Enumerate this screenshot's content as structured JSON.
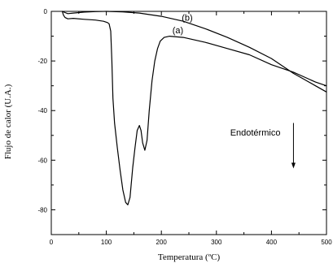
{
  "chart_data": {
    "type": "line",
    "title": "",
    "xlabel": "Temperatura (ºC)",
    "ylabel": "Flujo de calor (U.A.)",
    "xlim": [
      0,
      500
    ],
    "ylim": [
      -90,
      0
    ],
    "xticks": [
      0,
      100,
      200,
      300,
      400,
      500
    ],
    "yticks": [
      0,
      -20,
      -40,
      -60,
      -80
    ],
    "grid": false,
    "legend": "none",
    "series": [
      {
        "name": "(a)",
        "points": [
          [
            20,
            0
          ],
          [
            22,
            -1.5
          ],
          [
            25,
            -2.5
          ],
          [
            30,
            -3
          ],
          [
            40,
            -2.8
          ],
          [
            60,
            -3.2
          ],
          [
            80,
            -3.5
          ],
          [
            95,
            -4
          ],
          [
            102,
            -4.5
          ],
          [
            105,
            -5
          ],
          [
            108,
            -8
          ],
          [
            110,
            -20
          ],
          [
            112,
            -35
          ],
          [
            115,
            -45
          ],
          [
            120,
            -55
          ],
          [
            125,
            -64
          ],
          [
            130,
            -72
          ],
          [
            135,
            -77
          ],
          [
            139,
            -78
          ],
          [
            143,
            -75
          ],
          [
            148,
            -63
          ],
          [
            152,
            -55
          ],
          [
            156,
            -48
          ],
          [
            160,
            -46
          ],
          [
            163,
            -48
          ],
          [
            166,
            -53
          ],
          [
            170,
            -56
          ],
          [
            174,
            -52
          ],
          [
            178,
            -40
          ],
          [
            183,
            -28
          ],
          [
            188,
            -20
          ],
          [
            193,
            -15
          ],
          [
            198,
            -12
          ],
          [
            205,
            -10.5
          ],
          [
            215,
            -10
          ],
          [
            240,
            -10.5
          ],
          [
            280,
            -12.5
          ],
          [
            320,
            -15
          ],
          [
            360,
            -17.5
          ],
          [
            400,
            -21.5
          ],
          [
            420,
            -23
          ],
          [
            440,
            -24.5
          ],
          [
            460,
            -26.5
          ],
          [
            480,
            -28.5
          ],
          [
            500,
            -30
          ]
        ]
      },
      {
        "name": "(b)",
        "points": [
          [
            20,
            0
          ],
          [
            25,
            -0.5
          ],
          [
            30,
            -0.9
          ],
          [
            40,
            -0.7
          ],
          [
            60,
            -0.3
          ],
          [
            80,
            -0.1
          ],
          [
            100,
            0
          ],
          [
            130,
            -0.2
          ],
          [
            160,
            -0.7
          ],
          [
            200,
            -2
          ],
          [
            240,
            -4
          ],
          [
            280,
            -7
          ],
          [
            320,
            -10.5
          ],
          [
            360,
            -14.5
          ],
          [
            400,
            -19
          ],
          [
            420,
            -22
          ],
          [
            440,
            -25
          ],
          [
            460,
            -27.5
          ],
          [
            480,
            -30
          ],
          [
            500,
            -32.5
          ]
        ]
      }
    ],
    "annotations": {
      "label_a": {
        "text": "(a)",
        "x": 220,
        "y": -7.5
      },
      "label_b": {
        "text": "(b)",
        "x": 237,
        "y": -2.5
      },
      "arrow_label": {
        "text": "Endotérmico",
        "x": 325,
        "y": -50
      },
      "arrow": {
        "x": 440,
        "y_from": -45,
        "y_to": -63
      }
    }
  }
}
